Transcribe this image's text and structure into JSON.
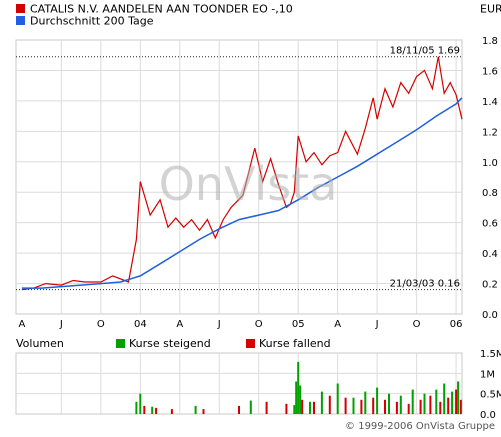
{
  "legend": {
    "series_price": "CATALIS N.V. AANDELEN AAN TOONDER EO -,10",
    "series_avg": "Durchschnitt 200 Tage",
    "currency": "EUR"
  },
  "volume_legend": {
    "title": "Volumen",
    "rising": "Kurse steigend",
    "falling": "Kurse fallend"
  },
  "watermark": "OnVista",
  "copyright": "© 1999-2006 OnVista Gruppe",
  "colors": {
    "price": "#d40000",
    "average": "#1f5fe0",
    "rising": "#00a000",
    "falling": "#d40000",
    "grid": "#dcdcdc",
    "frame": "#c8c8c8",
    "watermark": "#b0b0b0",
    "watermark_dot": "#e03030"
  },
  "chart_data": [
    {
      "type": "line",
      "ylim": [
        0,
        1.8
      ],
      "y_ticks": [
        "0.0",
        "0.2",
        "0.4",
        "0.6",
        "0.8",
        "1.0",
        "1.2",
        "1.4",
        "1.6",
        "1.8"
      ],
      "x_ticks": [
        "A",
        "J",
        "O",
        "04",
        "A",
        "J",
        "O",
        "05",
        "A",
        "J",
        "O",
        "06"
      ],
      "annotations": [
        {
          "label": "18/11/05 1.69",
          "value": 1.69,
          "t": 10.55
        },
        {
          "label": "21/03/03 0.16",
          "value": 0.16,
          "t": 0
        }
      ],
      "series": [
        {
          "name": "CATALIS N.V. AANDELEN AAN TOONDER EO -,10",
          "role": "price",
          "t": [
            0,
            0.3,
            0.6,
            1.0,
            1.3,
            1.6,
            2.0,
            2.3,
            2.7,
            2.9,
            3.0,
            3.25,
            3.5,
            3.7,
            3.9,
            4.1,
            4.3,
            4.5,
            4.7,
            4.9,
            5.1,
            5.3,
            5.6,
            5.9,
            6.1,
            6.3,
            6.5,
            6.7,
            6.8,
            6.9,
            7.0,
            7.2,
            7.4,
            7.6,
            7.8,
            8.0,
            8.2,
            8.5,
            8.7,
            8.9,
            9.0,
            9.2,
            9.4,
            9.6,
            9.8,
            10.0,
            10.2,
            10.4,
            10.55,
            10.7,
            10.85,
            11.0,
            11.15
          ],
          "values": [
            0.16,
            0.17,
            0.2,
            0.19,
            0.22,
            0.21,
            0.21,
            0.25,
            0.21,
            0.49,
            0.87,
            0.65,
            0.75,
            0.57,
            0.63,
            0.57,
            0.62,
            0.55,
            0.62,
            0.5,
            0.62,
            0.7,
            0.78,
            1.09,
            0.87,
            1.02,
            0.85,
            0.7,
            0.72,
            0.8,
            1.17,
            1.0,
            1.06,
            0.98,
            1.04,
            1.06,
            1.2,
            1.05,
            1.22,
            1.42,
            1.28,
            1.48,
            1.36,
            1.52,
            1.45,
            1.56,
            1.6,
            1.48,
            1.69,
            1.45,
            1.52,
            1.44,
            1.28
          ]
        },
        {
          "name": "Durchschnitt 200 Tage",
          "role": "average",
          "t": [
            0,
            0.5,
            1.0,
            1.5,
            2.0,
            2.5,
            3.0,
            3.5,
            4.0,
            4.5,
            5.0,
            5.5,
            6.0,
            6.5,
            7.0,
            7.5,
            8.0,
            8.5,
            9.0,
            9.5,
            10.0,
            10.5,
            11.0,
            11.15
          ],
          "values": [
            0.17,
            0.17,
            0.18,
            0.19,
            0.2,
            0.21,
            0.25,
            0.33,
            0.41,
            0.49,
            0.56,
            0.62,
            0.65,
            0.68,
            0.75,
            0.83,
            0.9,
            0.97,
            1.05,
            1.13,
            1.21,
            1.3,
            1.38,
            1.42
          ]
        }
      ]
    },
    {
      "type": "bar",
      "y_ticks": [
        "0.0",
        "0.5M",
        "1M",
        "1.5M"
      ],
      "ylim": [
        0,
        1.5
      ],
      "unit": "M",
      "series": [
        {
          "name": "Kurse steigend",
          "role": "rising",
          "t": [
            2.9,
            3.0,
            3.3,
            4.4,
            5.8,
            6.9,
            6.95,
            7.0,
            7.05,
            7.3,
            7.6,
            8.0,
            8.4,
            8.7,
            9.0,
            9.3,
            9.6,
            9.9,
            10.2,
            10.5,
            10.7,
            10.9,
            11.05
          ],
          "values": [
            0.3,
            0.5,
            0.18,
            0.2,
            0.33,
            0.22,
            0.8,
            1.28,
            0.7,
            0.3,
            0.55,
            0.75,
            0.4,
            0.55,
            0.65,
            0.5,
            0.45,
            0.6,
            0.5,
            0.6,
            0.75,
            0.55,
            0.8
          ]
        },
        {
          "name": "Kurse fallend",
          "role": "falling",
          "t": [
            3.1,
            3.4,
            3.8,
            4.6,
            5.5,
            6.2,
            6.7,
            7.1,
            7.4,
            7.8,
            8.2,
            8.6,
            8.9,
            9.2,
            9.5,
            9.8,
            10.1,
            10.35,
            10.6,
            10.8,
            11.0,
            11.12
          ],
          "values": [
            0.2,
            0.15,
            0.12,
            0.12,
            0.2,
            0.3,
            0.25,
            0.35,
            0.3,
            0.45,
            0.4,
            0.35,
            0.4,
            0.35,
            0.3,
            0.25,
            0.35,
            0.45,
            0.3,
            0.4,
            0.6,
            0.35
          ]
        }
      ]
    }
  ]
}
